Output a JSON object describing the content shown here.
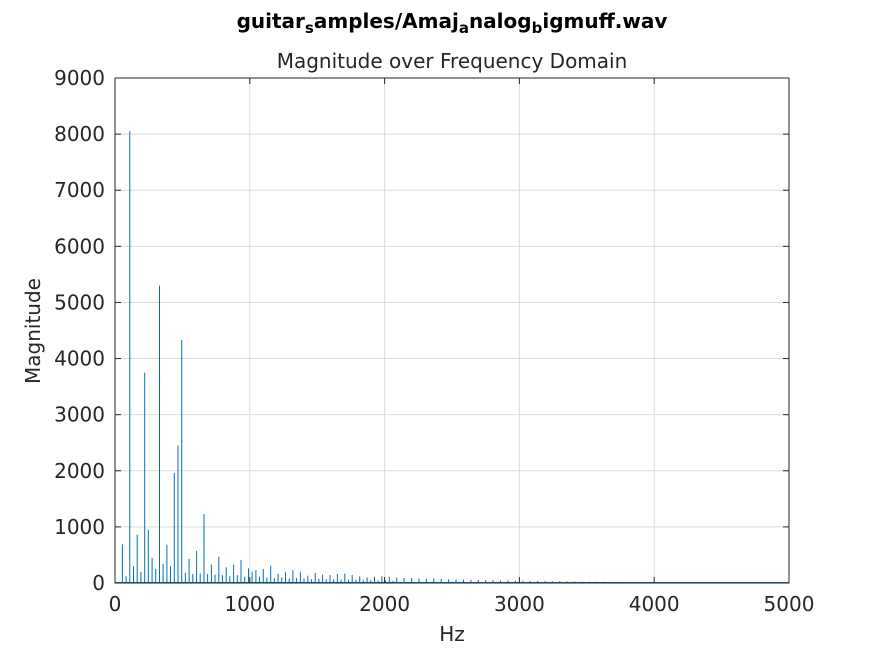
{
  "figure": {
    "title_parts": [
      {
        "text": "guitar",
        "sub": false
      },
      {
        "text": "s",
        "sub": true
      },
      {
        "text": "amples/Amaj",
        "sub": false
      },
      {
        "text": "a",
        "sub": true
      },
      {
        "text": "nalog",
        "sub": false
      },
      {
        "text": "b",
        "sub": true
      },
      {
        "text": "igmuff.wav",
        "sub": false
      }
    ],
    "subtitle": "Magnitude over Frequency Domain"
  },
  "chart_data": {
    "type": "line",
    "title": "guitar_samples/Amaj_analog_bigmuff.wav",
    "subtitle": "Magnitude over Frequency Domain",
    "xlabel": "Hz",
    "ylabel": "Magnitude",
    "xlim": [
      0,
      5000
    ],
    "ylim": [
      0,
      9000
    ],
    "xticks": [
      0,
      1000,
      2000,
      3000,
      4000,
      5000
    ],
    "yticks": [
      0,
      1000,
      2000,
      3000,
      4000,
      5000,
      6000,
      7000,
      8000,
      9000
    ],
    "grid": true,
    "color": "#0072bd",
    "series": [
      {
        "x": [
          55,
          82,
          110,
          137,
          165,
          192,
          220,
          247,
          275,
          302,
          330,
          357,
          385,
          412,
          440,
          467,
          495,
          522,
          550,
          577,
          605,
          632,
          660,
          687,
          715,
          742,
          770,
          797,
          825,
          852,
          880,
          907,
          935,
          962,
          990,
          1017,
          1045,
          1072,
          1100,
          1127,
          1155,
          1182,
          1210,
          1237,
          1265,
          1292,
          1320,
          1347,
          1375,
          1402,
          1430,
          1457,
          1485,
          1512,
          1540,
          1567,
          1595,
          1622,
          1650,
          1677,
          1705,
          1732,
          1760,
          1787,
          1815,
          1842,
          1870,
          1897,
          1925,
          1952,
          1980,
          2007,
          2035,
          2062,
          2090,
          2145,
          2200,
          2255,
          2310,
          2365,
          2420,
          2475,
          2530,
          2585,
          2640,
          2695,
          2750,
          2805,
          2860,
          2915,
          2970,
          3025,
          3080,
          3135,
          3190,
          3245,
          3300,
          3355,
          3410,
          3465,
          3520,
          3575,
          3630,
          3685,
          3740,
          3795,
          3850,
          3905,
          3960,
          4015,
          4070,
          4125,
          4180,
          4235,
          4290,
          4345,
          4400,
          4455,
          4510,
          4565,
          4620,
          4675,
          4730,
          4785,
          4840,
          4895,
          4950
        ],
        "y": [
          690,
          120,
          8050,
          300,
          860,
          200,
          3750,
          950,
          450,
          250,
          5300,
          340,
          680,
          300,
          1960,
          2450,
          4330,
          180,
          430,
          160,
          570,
          170,
          1230,
          160,
          330,
          150,
          470,
          140,
          280,
          120,
          330,
          140,
          410,
          110,
          260,
          200,
          230,
          110,
          250,
          100,
          310,
          90,
          160,
          100,
          190,
          80,
          230,
          90,
          200,
          80,
          130,
          70,
          180,
          75,
          150,
          70,
          140,
          65,
          160,
          60,
          170,
          60,
          140,
          55,
          120,
          50,
          100,
          50,
          110,
          45,
          120,
          45,
          110,
          40,
          95,
          90,
          85,
          80,
          75,
          80,
          70,
          65,
          60,
          60,
          55,
          55,
          50,
          50,
          45,
          45,
          40,
          40,
          35,
          38,
          33,
          30,
          30,
          28,
          26,
          25,
          25,
          23,
          22,
          20,
          20,
          18,
          18,
          17,
          16,
          15,
          15,
          14,
          13,
          12,
          12,
          11,
          10,
          10,
          9,
          9,
          8,
          8,
          8,
          7,
          7,
          6,
          6
        ]
      }
    ]
  }
}
